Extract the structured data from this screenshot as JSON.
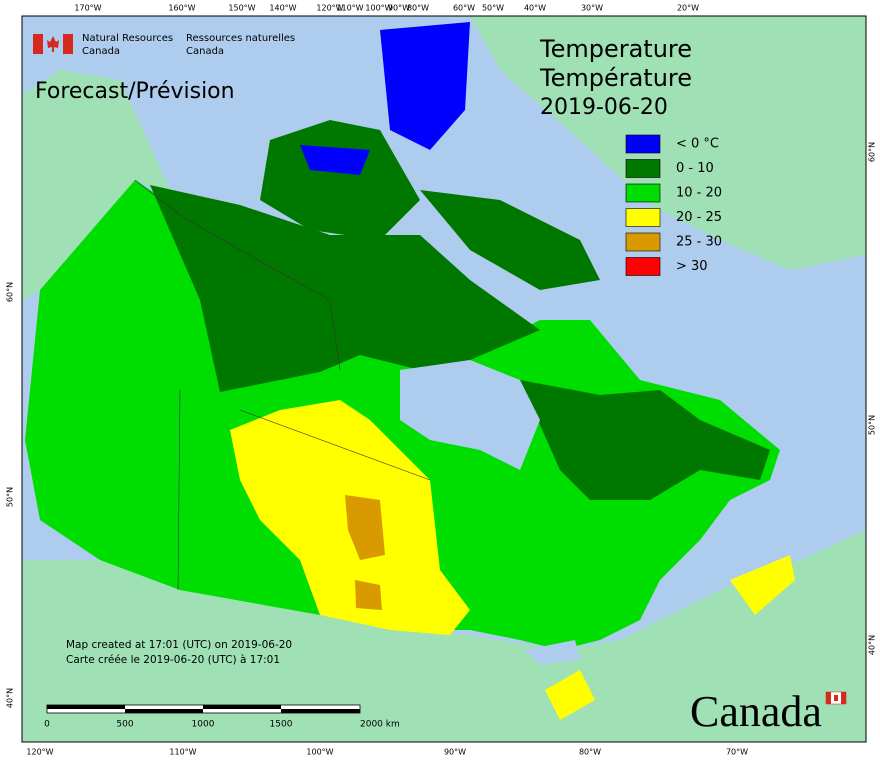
{
  "agency": {
    "en": [
      "Natural Resources",
      "Canada"
    ],
    "fr": [
      "Ressources naturelles",
      "Canada"
    ]
  },
  "product": "Forecast/Prévision",
  "title": {
    "lines": [
      "Temperature",
      "Température"
    ],
    "date": "2019-06-20"
  },
  "legend": [
    {
      "label": "< 0 °C",
      "color": "#0000ff"
    },
    {
      "label": "0 - 10",
      "color": "#007800"
    },
    {
      "label": "10 - 20",
      "color": "#00dd00"
    },
    {
      "label": "20 - 25",
      "color": "#ffff00"
    },
    {
      "label": "25 - 30",
      "color": "#d99a00"
    },
    {
      "label": "> 30",
      "color": "#ff0000"
    }
  ],
  "credits": [
    "Map created at 17:01 (UTC) on 2019-06-20",
    "Carte créée le 2019-06-20 (UTC) à 17:01"
  ],
  "scale_bar": [
    "0",
    "500",
    "1000",
    "1500",
    "2000  km"
  ],
  "wordmark": "Canada",
  "graticule": {
    "top": [
      "170°W",
      "160°W",
      "150°W",
      "140°W",
      "120°W",
      "110°W",
      "100°W",
      "90°W",
      "80°W",
      "60°W",
      "50°W",
      "40°W",
      "30°W",
      "20°W"
    ],
    "bottom": [
      "120°W",
      "110°W",
      "100°W",
      "90°W",
      "80°W",
      "70°W"
    ],
    "left": [
      "60°N",
      "50°N",
      "40°N"
    ],
    "right": [
      "60°N",
      "50°N",
      "40°N"
    ]
  }
}
